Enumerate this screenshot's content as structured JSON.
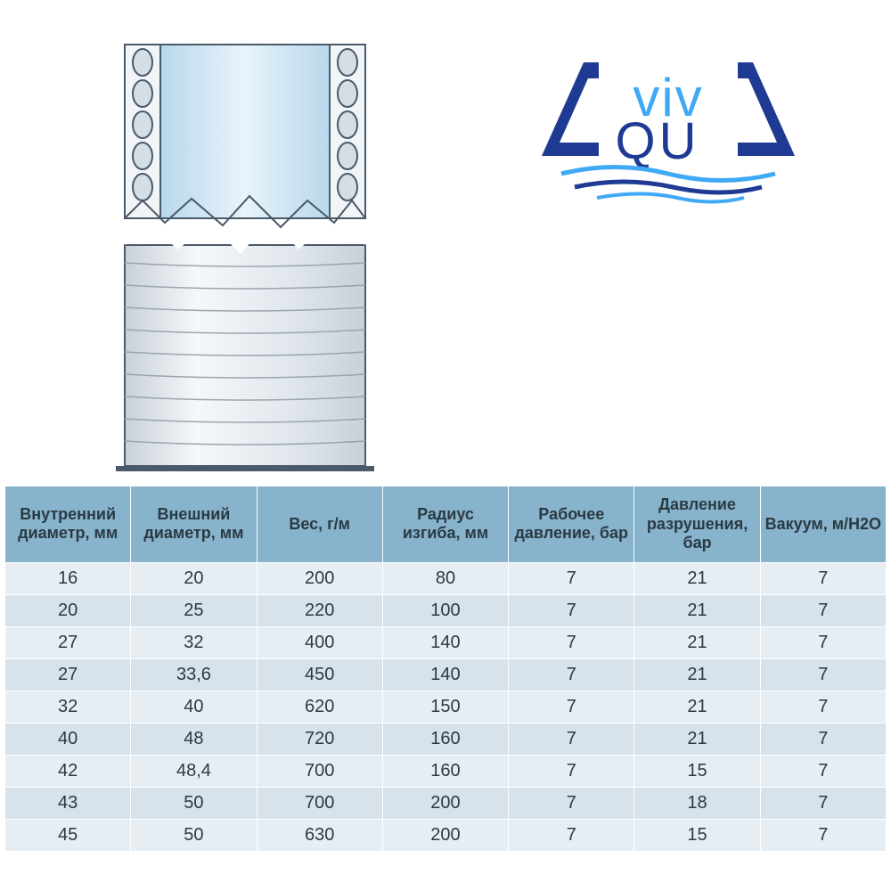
{
  "logo": {
    "text_viva": "viv",
    "text_qu": "QU",
    "color_dark": "#1f3a93",
    "color_light": "#3fa9f5"
  },
  "table": {
    "header_bg": "#87b3cc",
    "row_even_bg": "#e7eef3",
    "row_odd_bg": "#d7e2ea",
    "border_color": "#ffffff",
    "text_color": "#2b3a42",
    "header_fontsize": 18,
    "cell_fontsize": 20,
    "columns": [
      "Внутренний диаметр, мм",
      "Внешний диаметр, мм",
      "Вес, г/м",
      "Радиус изгиба, мм",
      "Рабочее давление, бар",
      "Давление разрушения, бар",
      "Вакуум, м/H2O"
    ],
    "rows": [
      [
        "16",
        "20",
        "200",
        "80",
        "7",
        "21",
        "7"
      ],
      [
        "20",
        "25",
        "220",
        "100",
        "7",
        "21",
        "7"
      ],
      [
        "27",
        "32",
        "400",
        "140",
        "7",
        "21",
        "7"
      ],
      [
        "27",
        "33,6",
        "450",
        "140",
        "7",
        "21",
        "7"
      ],
      [
        "32",
        "40",
        "620",
        "150",
        "7",
        "21",
        "7"
      ],
      [
        "40",
        "48",
        "720",
        "160",
        "7",
        "21",
        "7"
      ],
      [
        "42",
        "48,4",
        "700",
        "160",
        "7",
        "15",
        "7"
      ],
      [
        "43",
        "50",
        "700",
        "200",
        "7",
        "18",
        "7"
      ],
      [
        "45",
        "50",
        "630",
        "200",
        "7",
        "15",
        "7"
      ]
    ]
  },
  "diagram": {
    "outline_color": "#4a5a6a",
    "fill_light": "#f2f5f8",
    "fill_mid": "#d5dde5",
    "fill_blue": "#cfe5f2"
  }
}
